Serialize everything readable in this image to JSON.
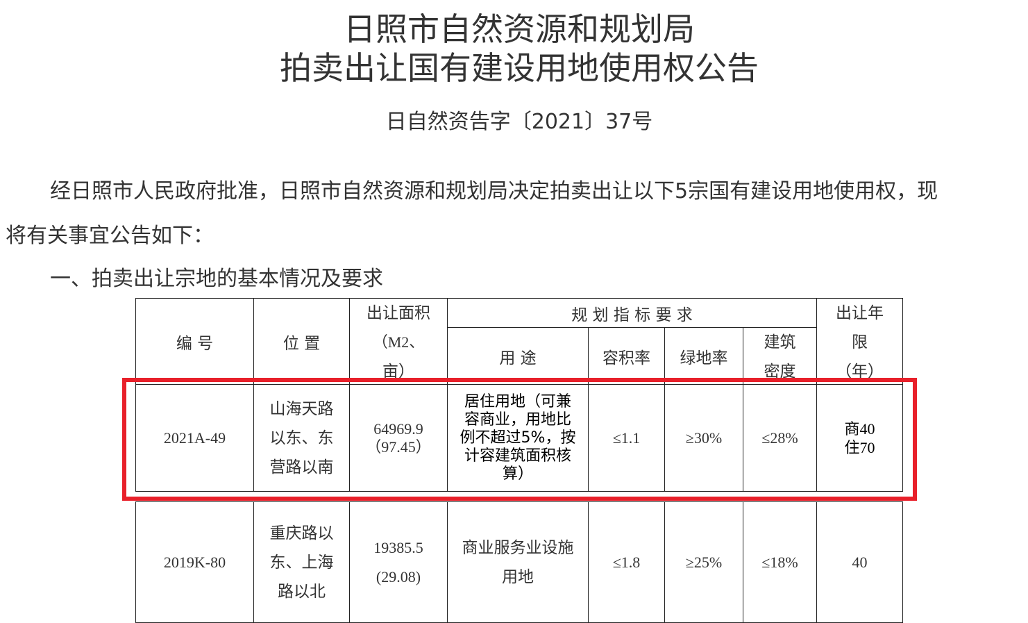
{
  "title_line1": "日照市自然资源和规划局",
  "title_line2": "拍卖出让国有建设用地使用权公告",
  "doc_number": "日自然资告字〔2021〕37号",
  "intro_line1": "经日照市人民政府批准，日照市自然资源和规划局决定拍卖出让以下5宗国有建设用地使用权，现",
  "intro_line2": "将有关事宜公告如下：",
  "section1": "一、拍卖出让宗地的基本情况及要求",
  "table": {
    "headers": {
      "id": "编  号",
      "location": "位  置",
      "area": [
        "出让面积",
        "（M2、",
        "亩）"
      ],
      "planning": "规 划 指 标 要 求",
      "use": "用 途",
      "far": "容积率",
      "green": "绿地率",
      "density": [
        "建筑",
        "密度"
      ],
      "term": [
        "出让年",
        "限",
        "（年）"
      ]
    },
    "rows": [
      {
        "id": "2021A-49",
        "location": [
          "山海天路",
          "以东、东",
          "营路以南"
        ],
        "area": [
          "64969.9",
          "（97.45）"
        ],
        "use": [
          "居住用地（可兼",
          "容商业，用地比",
          "例不超过5%，按",
          "计容建筑面积核",
          "算）"
        ],
        "far": "≤1.1",
        "green": "≥30%",
        "density": "≤28%",
        "term": [
          "商40",
          "住70"
        ],
        "highlighted": true
      },
      {
        "id": "2019K-80",
        "location": [
          "重庆路以",
          "东、上海",
          "路以北"
        ],
        "area": [
          "19385.5",
          "(29.08)"
        ],
        "use": [
          "商业服务业设施",
          "用地"
        ],
        "far": "≤1.8",
        "green": "≥25%",
        "density": "≤18%",
        "term": [
          "40"
        ],
        "highlighted": false
      }
    ]
  },
  "highlight_color": "#e8202a"
}
